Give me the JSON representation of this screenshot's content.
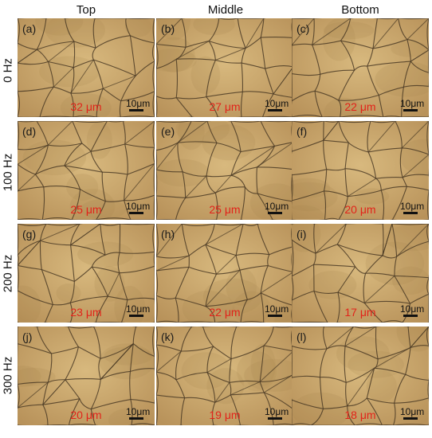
{
  "columns": [
    "Top",
    "Middle",
    "Bottom"
  ],
  "rows": [
    "0 Hz",
    "100 Hz",
    "200 Hz",
    "300 Hz"
  ],
  "scale_bar_label": "10μm",
  "panels": [
    {
      "label": "(a)",
      "grain_size": "32 μm"
    },
    {
      "label": "(b)",
      "grain_size": "27 μm"
    },
    {
      "label": "(c)",
      "grain_size": "22 μm"
    },
    {
      "label": "(d)",
      "grain_size": "25 μm"
    },
    {
      "label": "(e)",
      "grain_size": "25 μm"
    },
    {
      "label": "(f)",
      "grain_size": "20 μm"
    },
    {
      "label": "(g)",
      "grain_size": "23 μm"
    },
    {
      "label": "(h)",
      "grain_size": "22 μm"
    },
    {
      "label": "(i)",
      "grain_size": "17 μm"
    },
    {
      "label": "(j)",
      "grain_size": "20 μm"
    },
    {
      "label": "(k)",
      "grain_size": "19 μm"
    },
    {
      "label": "(l)",
      "grain_size": "18 μm"
    }
  ],
  "colors": {
    "micrograph_background": "#c7a367",
    "grain_boundary": "#4a3a25",
    "grain_size_text": "#e2231a"
  }
}
